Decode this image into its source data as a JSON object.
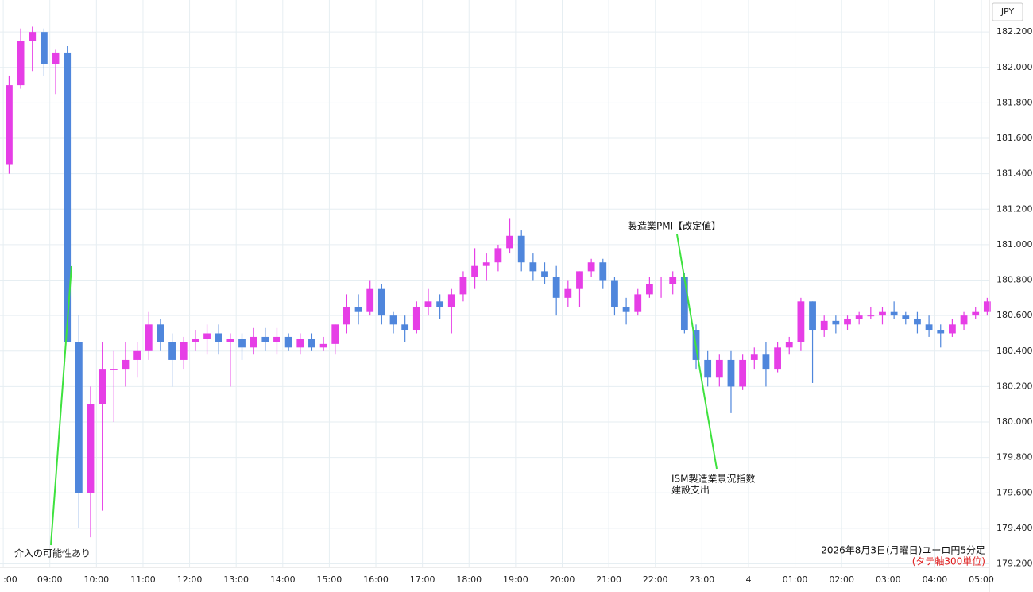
{
  "chart_data": {
    "type": "candlestick",
    "currency_label": "JPY",
    "caption": "2026年8月3日(月曜日)ユーロ円5分足",
    "caption_note": "(タテ軸300単位)",
    "annotations": [
      "介入の可能性あり",
      "製造業PMI【改定値】",
      "ISM製造業景況指数",
      "建設支出"
    ],
    "up_color": "#e63ee6",
    "down_color": "#4f86dc",
    "grid": true,
    "ylim": [
      179.18,
      182.38
    ],
    "yticks": [
      {
        "value": 179.2,
        "label": "179.200"
      },
      {
        "value": 179.4,
        "label": "179.400"
      },
      {
        "value": 179.6,
        "label": "179.600"
      },
      {
        "value": 179.8,
        "label": "179.800"
      },
      {
        "value": 180.0,
        "label": "180.000"
      },
      {
        "value": 180.2,
        "label": "180.200"
      },
      {
        "value": 180.4,
        "label": "180.400"
      },
      {
        "value": 180.6,
        "label": "180.600"
      },
      {
        "value": 180.8,
        "label": "180.800"
      },
      {
        "value": 181.0,
        "label": "181.000"
      },
      {
        "value": 181.2,
        "label": "181.200"
      },
      {
        "value": 181.4,
        "label": "181.400"
      },
      {
        "value": 181.6,
        "label": "181.600"
      },
      {
        "value": 181.8,
        "label": "181.800"
      },
      {
        "value": 182.0,
        "label": "182.000"
      },
      {
        "value": 182.2,
        "label": "182.200"
      }
    ],
    "xlim": [
      7.93,
      29.17
    ],
    "xticks": [
      {
        "value": 8,
        "label": ":00"
      },
      {
        "value": 9,
        "label": "09:00"
      },
      {
        "value": 10,
        "label": "10:00"
      },
      {
        "value": 11,
        "label": "11:00"
      },
      {
        "value": 12,
        "label": "12:00"
      },
      {
        "value": 13,
        "label": "13:00"
      },
      {
        "value": 14,
        "label": "14:00"
      },
      {
        "value": 15,
        "label": "15:00"
      },
      {
        "value": 16,
        "label": "16:00"
      },
      {
        "value": 17,
        "label": "17:00"
      },
      {
        "value": 18,
        "label": "18:00"
      },
      {
        "value": 19,
        "label": "19:00"
      },
      {
        "value": 20,
        "label": "20:00"
      },
      {
        "value": 21,
        "label": "21:00"
      },
      {
        "value": 22,
        "label": "22:00"
      },
      {
        "value": 23,
        "label": "23:00"
      },
      {
        "value": 24,
        "label": "4"
      },
      {
        "value": 25,
        "label": "01:00"
      },
      {
        "value": 26,
        "label": "02:00"
      },
      {
        "value": 27,
        "label": "03:00"
      },
      {
        "value": 28,
        "label": "04:00"
      },
      {
        "value": 29,
        "label": "05:00"
      }
    ],
    "x": [
      8.125,
      8.375,
      8.625,
      8.875,
      9.125,
      9.375,
      9.625,
      9.875,
      10.125,
      10.375,
      10.625,
      10.875,
      11.125,
      11.375,
      11.625,
      11.875,
      12.125,
      12.375,
      12.625,
      12.875,
      13.125,
      13.375,
      13.625,
      13.875,
      14.125,
      14.375,
      14.625,
      14.875,
      15.125,
      15.375,
      15.625,
      15.875,
      16.125,
      16.375,
      16.625,
      16.875,
      17.125,
      17.375,
      17.625,
      17.875,
      18.125,
      18.375,
      18.625,
      18.875,
      19.125,
      19.375,
      19.625,
      19.875,
      20.125,
      20.375,
      20.625,
      20.875,
      21.125,
      21.375,
      21.625,
      21.875,
      22.125,
      22.375,
      22.625,
      22.875,
      23.125,
      23.375,
      23.625,
      23.875,
      24.125,
      24.375,
      24.625,
      24.875,
      25.125,
      25.375,
      25.625,
      25.875,
      26.125,
      26.375,
      26.625,
      26.875,
      27.125,
      27.375,
      27.625,
      27.875,
      28.125,
      28.375,
      28.625,
      28.875,
      29.125
    ],
    "ohlc": [
      [
        181.45,
        181.95,
        181.4,
        181.9
      ],
      [
        181.9,
        182.22,
        181.88,
        182.15
      ],
      [
        182.15,
        182.23,
        181.98,
        182.2
      ],
      [
        182.2,
        182.22,
        181.95,
        182.02
      ],
      [
        182.02,
        182.1,
        181.85,
        182.08
      ],
      [
        182.08,
        182.12,
        180.45,
        180.45
      ],
      [
        180.45,
        180.6,
        179.4,
        179.6
      ],
      [
        179.6,
        180.2,
        179.35,
        180.1
      ],
      [
        180.1,
        180.45,
        179.5,
        180.3
      ],
      [
        180.3,
        180.4,
        180.0,
        180.3
      ],
      [
        180.3,
        180.45,
        180.2,
        180.35
      ],
      [
        180.35,
        180.45,
        180.25,
        180.4
      ],
      [
        180.4,
        180.62,
        180.35,
        180.55
      ],
      [
        180.55,
        180.58,
        180.4,
        180.45
      ],
      [
        180.45,
        180.5,
        180.2,
        180.35
      ],
      [
        180.35,
        180.48,
        180.3,
        180.45
      ],
      [
        180.45,
        180.52,
        180.4,
        180.47
      ],
      [
        180.47,
        180.55,
        180.38,
        180.5
      ],
      [
        180.5,
        180.55,
        180.38,
        180.45
      ],
      [
        180.45,
        180.5,
        180.2,
        180.47
      ],
      [
        180.47,
        180.5,
        180.35,
        180.42
      ],
      [
        180.42,
        180.53,
        180.38,
        180.48
      ],
      [
        180.48,
        180.53,
        180.4,
        180.45
      ],
      [
        180.45,
        180.53,
        180.38,
        180.48
      ],
      [
        180.48,
        180.5,
        180.4,
        180.42
      ],
      [
        180.42,
        180.5,
        180.38,
        180.47
      ],
      [
        180.47,
        180.5,
        180.4,
        180.42
      ],
      [
        180.42,
        180.48,
        180.4,
        180.44
      ],
      [
        180.44,
        180.55,
        180.38,
        180.55
      ],
      [
        180.55,
        180.72,
        180.5,
        180.65
      ],
      [
        180.65,
        180.72,
        180.55,
        180.62
      ],
      [
        180.62,
        180.8,
        180.6,
        180.75
      ],
      [
        180.75,
        180.78,
        180.55,
        180.6
      ],
      [
        180.6,
        180.62,
        180.5,
        180.55
      ],
      [
        180.55,
        180.6,
        180.45,
        180.52
      ],
      [
        180.52,
        180.68,
        180.5,
        180.65
      ],
      [
        180.65,
        180.75,
        180.6,
        180.68
      ],
      [
        180.68,
        180.72,
        180.58,
        180.65
      ],
      [
        180.65,
        180.75,
        180.5,
        180.72
      ],
      [
        180.72,
        180.85,
        180.68,
        180.82
      ],
      [
        180.82,
        180.98,
        180.75,
        180.88
      ],
      [
        180.88,
        180.95,
        180.8,
        180.9
      ],
      [
        180.9,
        181.0,
        180.85,
        180.98
      ],
      [
        180.98,
        181.15,
        180.95,
        181.05
      ],
      [
        181.05,
        181.08,
        180.85,
        180.9
      ],
      [
        180.9,
        180.95,
        180.8,
        180.85
      ],
      [
        180.85,
        180.9,
        180.78,
        180.82
      ],
      [
        180.82,
        180.88,
        180.6,
        180.7
      ],
      [
        180.7,
        180.8,
        180.65,
        180.75
      ],
      [
        180.75,
        180.85,
        180.65,
        180.85
      ],
      [
        180.85,
        180.92,
        180.82,
        180.9
      ],
      [
        180.9,
        180.92,
        180.75,
        180.8
      ],
      [
        180.8,
        180.82,
        180.6,
        180.65
      ],
      [
        180.65,
        180.7,
        180.55,
        180.62
      ],
      [
        180.62,
        180.75,
        180.6,
        180.72
      ],
      [
        180.72,
        180.82,
        180.7,
        180.78
      ],
      [
        180.78,
        180.82,
        180.7,
        180.78
      ],
      [
        180.78,
        180.85,
        180.72,
        180.82
      ],
      [
        180.82,
        180.84,
        180.5,
        180.52
      ],
      [
        180.52,
        180.55,
        180.3,
        180.35
      ],
      [
        180.35,
        180.4,
        180.2,
        180.25
      ],
      [
        180.25,
        180.38,
        180.2,
        180.35
      ],
      [
        180.35,
        180.4,
        180.05,
        180.2
      ],
      [
        180.2,
        180.38,
        180.18,
        180.35
      ],
      [
        180.35,
        180.42,
        180.3,
        180.38
      ],
      [
        180.38,
        180.45,
        180.2,
        180.3
      ],
      [
        180.3,
        180.45,
        180.28,
        180.42
      ],
      [
        180.42,
        180.48,
        180.38,
        180.45
      ],
      [
        180.45,
        180.7,
        180.4,
        180.68
      ],
      [
        180.68,
        180.68,
        180.22,
        180.52
      ],
      [
        180.52,
        180.6,
        180.48,
        180.57
      ],
      [
        180.57,
        180.6,
        180.5,
        180.55
      ],
      [
        180.55,
        180.6,
        180.52,
        180.58
      ],
      [
        180.58,
        180.62,
        180.55,
        180.6
      ],
      [
        180.6,
        180.65,
        180.58,
        180.6
      ],
      [
        180.6,
        180.65,
        180.55,
        180.62
      ],
      [
        180.62,
        180.68,
        180.58,
        180.6
      ],
      [
        180.6,
        180.62,
        180.55,
        180.58
      ],
      [
        180.58,
        180.62,
        180.5,
        180.55
      ],
      [
        180.55,
        180.6,
        180.48,
        180.52
      ],
      [
        180.52,
        180.55,
        180.42,
        180.5
      ],
      [
        180.5,
        180.58,
        180.48,
        180.55
      ],
      [
        180.55,
        180.62,
        180.52,
        180.6
      ],
      [
        180.6,
        180.65,
        180.58,
        180.62
      ],
      [
        180.62,
        180.7,
        180.6,
        180.68
      ]
    ]
  }
}
